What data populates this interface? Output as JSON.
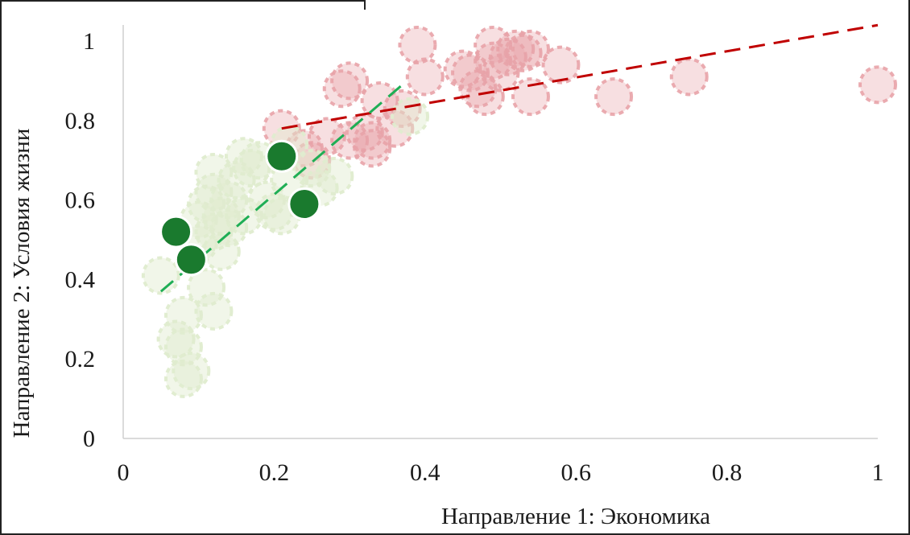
{
  "chart_data": {
    "type": "scatter",
    "title": "",
    "xlabel": "Направление 1: Экономика",
    "ylabel": "Направление 2: Условия жизни",
    "xlim": [
      0,
      1
    ],
    "ylim": [
      0,
      1
    ],
    "x_ticks": [
      "0",
      "0.2",
      "0.4",
      "0.6",
      "0.8",
      "1"
    ],
    "y_ticks": [
      "0",
      "0.2",
      "0.4",
      "0.6",
      "0.8",
      "1"
    ],
    "grid": false,
    "legend": "none",
    "colors": {
      "red_points": "#e8a3a8",
      "light_green_points": "#dfeccf",
      "dark_green_points": "#1a7a2e",
      "red_trend": "#c00000",
      "green_trend": "#1fae55"
    },
    "series": [
      {
        "style": "light-red-circles",
        "points": [
          [
            0.21,
            0.78
          ],
          [
            0.24,
            0.73
          ],
          [
            0.25,
            0.7
          ],
          [
            0.27,
            0.76
          ],
          [
            0.29,
            0.88
          ],
          [
            0.3,
            0.9
          ],
          [
            0.3,
            0.75
          ],
          [
            0.32,
            0.77
          ],
          [
            0.33,
            0.73
          ],
          [
            0.33,
            0.75
          ],
          [
            0.34,
            0.85
          ],
          [
            0.36,
            0.78
          ],
          [
            0.37,
            0.83
          ],
          [
            0.39,
            0.99
          ],
          [
            0.4,
            0.91
          ],
          [
            0.45,
            0.93
          ],
          [
            0.46,
            0.92
          ],
          [
            0.47,
            0.88
          ],
          [
            0.48,
            0.86
          ],
          [
            0.49,
            0.99
          ],
          [
            0.49,
            0.95
          ],
          [
            0.5,
            0.92
          ],
          [
            0.51,
            0.96
          ],
          [
            0.52,
            0.98
          ],
          [
            0.53,
            0.97
          ],
          [
            0.54,
            0.98
          ],
          [
            0.54,
            0.86
          ],
          [
            0.58,
            0.94
          ],
          [
            0.65,
            0.86
          ],
          [
            0.75,
            0.91
          ],
          [
            1.0,
            0.89
          ]
        ]
      },
      {
        "style": "light-green-circles",
        "points": [
          [
            0.05,
            0.41
          ],
          [
            0.07,
            0.25
          ],
          [
            0.08,
            0.23
          ],
          [
            0.08,
            0.15
          ],
          [
            0.09,
            0.17
          ],
          [
            0.08,
            0.31
          ],
          [
            0.1,
            0.49
          ],
          [
            0.11,
            0.38
          ],
          [
            0.1,
            0.55
          ],
          [
            0.11,
            0.59
          ],
          [
            0.12,
            0.62
          ],
          [
            0.12,
            0.52
          ],
          [
            0.12,
            0.67
          ],
          [
            0.13,
            0.56
          ],
          [
            0.13,
            0.47
          ],
          [
            0.14,
            0.53
          ],
          [
            0.14,
            0.6
          ],
          [
            0.15,
            0.65
          ],
          [
            0.16,
            0.71
          ],
          [
            0.16,
            0.56
          ],
          [
            0.17,
            0.68
          ],
          [
            0.18,
            0.7
          ],
          [
            0.19,
            0.6
          ],
          [
            0.2,
            0.57
          ],
          [
            0.22,
            0.65
          ],
          [
            0.22,
            0.74
          ],
          [
            0.25,
            0.68
          ],
          [
            0.28,
            0.66
          ],
          [
            0.38,
            0.81
          ],
          [
            0.12,
            0.32
          ],
          [
            0.26,
            0.63
          ],
          [
            0.21,
            0.56
          ]
        ]
      },
      {
        "style": "dark-green-circles",
        "points": [
          [
            0.07,
            0.52
          ],
          [
            0.09,
            0.45
          ],
          [
            0.21,
            0.71
          ],
          [
            0.24,
            0.59
          ]
        ]
      }
    ],
    "trendlines": [
      {
        "style": "red-dashed",
        "x": [
          0.21,
          1.0
        ],
        "y": [
          0.78,
          1.04
        ]
      },
      {
        "style": "green-dashed",
        "x": [
          0.05,
          0.37
        ],
        "y": [
          0.37,
          0.89
        ]
      }
    ]
  }
}
